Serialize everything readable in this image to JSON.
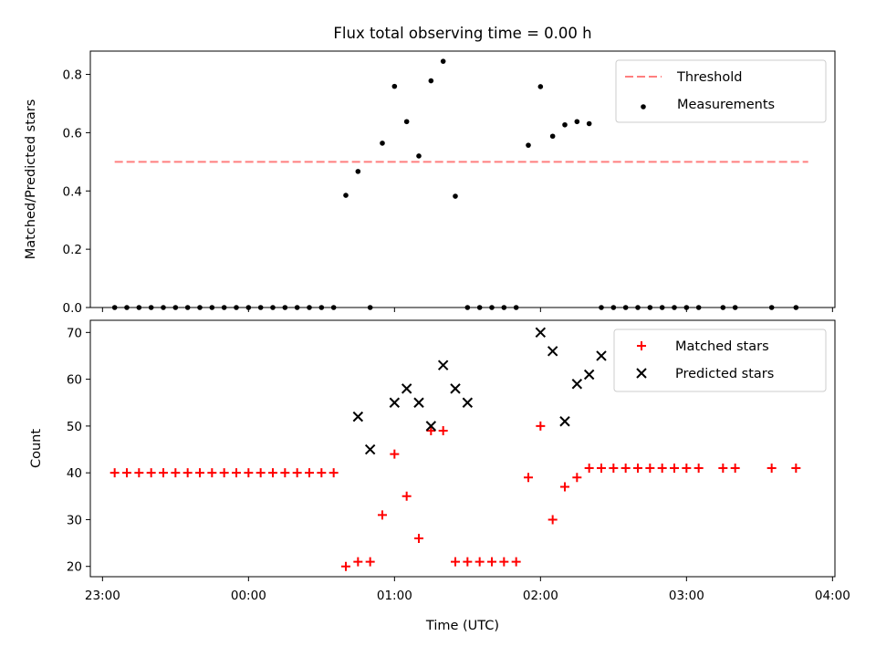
{
  "title": "Flux total observing time = 0.00 h",
  "colors": {
    "threshold": "#ff7f7f",
    "measurement": "#000000",
    "matched": "#ff0000",
    "predicted": "#000000"
  },
  "chart_data": [
    {
      "type": "scatter",
      "ylabel": "Matched/Predicted stars",
      "xlim": [
        "22:55",
        "04:01"
      ],
      "ylim": [
        0,
        0.88
      ],
      "x_ticks": [
        "23:00",
        "00:00",
        "01:00",
        "02:00",
        "03:00",
        "04:00"
      ],
      "y_ticks": [
        "0.0",
        "0.2",
        "0.4",
        "0.6",
        "0.8"
      ],
      "legend_position": "top-right",
      "series": [
        {
          "name": "Threshold",
          "style": "dashed-line",
          "x": [
            "23:05",
            "03:50"
          ],
          "y": [
            0.5,
            0.5
          ]
        },
        {
          "name": "Measurements",
          "style": "dot",
          "x": [
            "23:05",
            "23:10",
            "23:15",
            "23:20",
            "23:25",
            "23:30",
            "23:35",
            "23:40",
            "23:45",
            "23:50",
            "23:55",
            "00:00",
            "00:05",
            "00:10",
            "00:15",
            "00:20",
            "00:25",
            "00:30",
            "00:35",
            "00:40",
            "00:45",
            "00:50",
            "00:55",
            "01:00",
            "01:05",
            "01:10",
            "01:15",
            "01:20",
            "01:25",
            "01:30",
            "01:35",
            "01:40",
            "01:45",
            "01:50",
            "01:55",
            "02:00",
            "02:05",
            "02:10",
            "02:15",
            "02:20",
            "02:25",
            "02:30",
            "02:35",
            "02:40",
            "02:45",
            "02:50",
            "02:55",
            "03:00",
            "03:05",
            "03:15",
            "03:20",
            "03:35",
            "03:45"
          ],
          "y": [
            0,
            0,
            0,
            0,
            0,
            0,
            0,
            0,
            0,
            0,
            0,
            0,
            0,
            0,
            0,
            0,
            0,
            0,
            0,
            0.385,
            0.467,
            0,
            0.564,
            0.759,
            0.638,
            0.52,
            0.778,
            0.845,
            0.382,
            0,
            0,
            0,
            0,
            0,
            0.557,
            0.758,
            0.588,
            0.627,
            0.638,
            0.631,
            0,
            0,
            0,
            0,
            0,
            0,
            0,
            0,
            0,
            0,
            0,
            0,
            0
          ]
        }
      ]
    },
    {
      "type": "scatter",
      "xlabel": "Time (UTC)",
      "ylabel": "Count",
      "xlim": [
        "22:55",
        "04:01"
      ],
      "ylim": [
        17.8,
        72.6
      ],
      "x_ticks": [
        "23:00",
        "00:00",
        "01:00",
        "02:00",
        "03:00",
        "04:00"
      ],
      "y_ticks": [
        "20",
        "30",
        "40",
        "50",
        "60",
        "70"
      ],
      "legend_position": "top-right",
      "series": [
        {
          "name": "Matched stars",
          "marker": "+",
          "x": [
            "23:05",
            "23:10",
            "23:15",
            "23:20",
            "23:25",
            "23:30",
            "23:35",
            "23:40",
            "23:45",
            "23:50",
            "23:55",
            "00:00",
            "00:05",
            "00:10",
            "00:15",
            "00:20",
            "00:25",
            "00:30",
            "00:35",
            "00:40",
            "00:45",
            "00:50",
            "00:55",
            "01:00",
            "01:05",
            "01:10",
            "01:15",
            "01:20",
            "01:25",
            "01:30",
            "01:35",
            "01:40",
            "01:45",
            "01:50",
            "01:55",
            "02:00",
            "02:05",
            "02:10",
            "02:15",
            "02:20",
            "02:25",
            "02:30",
            "02:35",
            "02:40",
            "02:45",
            "02:50",
            "02:55",
            "03:00",
            "03:05",
            "03:15",
            "03:20",
            "03:35",
            "03:45"
          ],
          "y": [
            40,
            40,
            40,
            40,
            40,
            40,
            40,
            40,
            40,
            40,
            40,
            40,
            40,
            40,
            40,
            40,
            40,
            40,
            40,
            20,
            21,
            21,
            31,
            44,
            35,
            26,
            49,
            49,
            21,
            21,
            21,
            21,
            21,
            21,
            39,
            50,
            30,
            37,
            39,
            41,
            41,
            41,
            41,
            41,
            41,
            41,
            41,
            41,
            41,
            41,
            41,
            41,
            41
          ]
        },
        {
          "name": "Predicted stars",
          "marker": "x",
          "x": [
            "00:45",
            "00:50",
            "01:00",
            "01:05",
            "01:10",
            "01:15",
            "01:20",
            "01:25",
            "01:30",
            "02:00",
            "02:05",
            "02:10",
            "02:15",
            "02:20",
            "02:25"
          ],
          "y": [
            52,
            45,
            55,
            58,
            55,
            50,
            63,
            58,
            55,
            70,
            66,
            51,
            59,
            61,
            65
          ]
        }
      ]
    }
  ]
}
